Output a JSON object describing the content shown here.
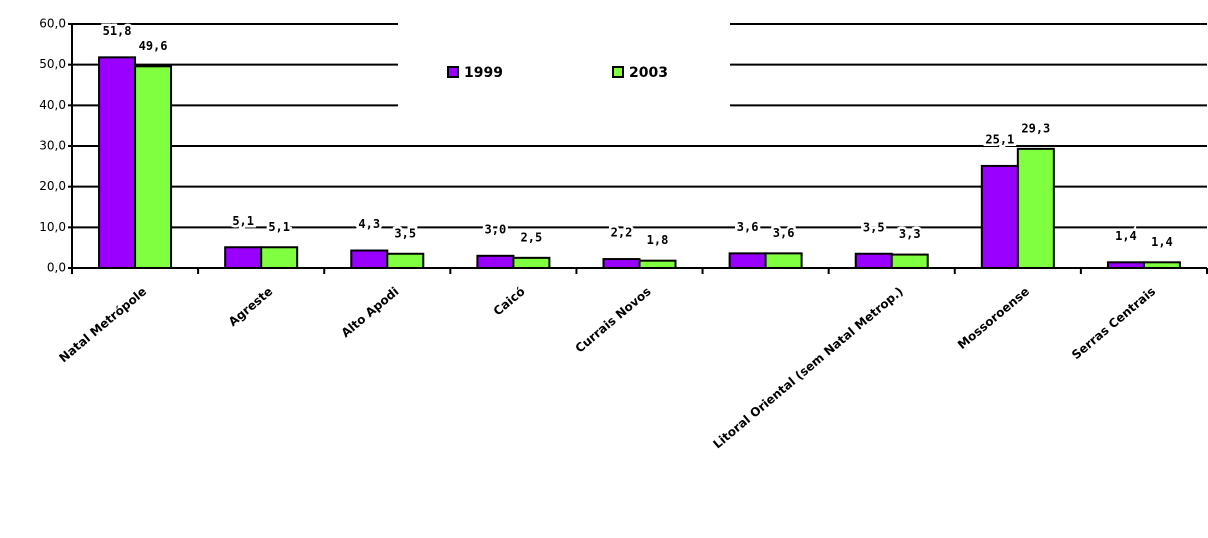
{
  "chart_data": {
    "type": "bar",
    "categories": [
      "Natal Metrópole",
      "Agreste",
      "Alto Apodi",
      "Caicó",
      "Currais Novos",
      null,
      "Litoral Oriental (sem Natal Metrop.)",
      "Mossoroense",
      "Serras Centrais"
    ],
    "series": [
      {
        "name": "1999",
        "color": "#9900ff",
        "values": [
          51.8,
          5.1,
          4.3,
          3.0,
          2.2,
          3.6,
          3.5,
          25.1,
          1.4
        ],
        "value_labels": [
          "51,8",
          "5,1",
          "4,3",
          "3,0",
          "2,2",
          "3,6",
          "3,5",
          "25,1",
          "1,4"
        ]
      },
      {
        "name": "2003",
        "color": "#80ff40",
        "values": [
          49.6,
          5.1,
          3.5,
          2.5,
          1.8,
          3.6,
          3.3,
          29.3,
          1.4
        ],
        "value_labels": [
          "49,6",
          "5,1",
          "3,5",
          "2,5",
          "1,8",
          "3,6",
          "3,3",
          "29,3",
          "1,4"
        ]
      }
    ],
    "ylim": [
      0,
      60
    ],
    "yticks": [
      {
        "value": 0,
        "label": "0,0"
      },
      {
        "value": 10,
        "label": "10,0"
      },
      {
        "value": 20,
        "label": "20,0"
      },
      {
        "value": 30,
        "label": "30,0"
      },
      {
        "value": 40,
        "label": "40,0"
      },
      {
        "value": 50,
        "label": "50,0"
      },
      {
        "value": 60,
        "label": "60,0"
      }
    ],
    "grid": true
  }
}
